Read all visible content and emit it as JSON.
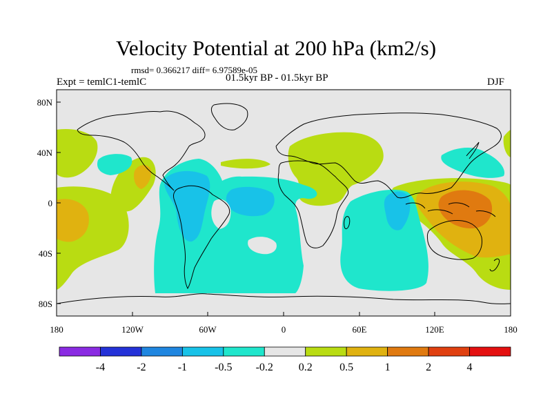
{
  "title": "Velocity Potential at 200 hPa (km2/s)",
  "stats_text": "rmsd= 0.366217 diff= 6.97589e-05",
  "experiment_label": "Expt = temlC1-temlC",
  "period_label": "01.5kyr BP - 01.5kyr BP",
  "season_label": "DJF",
  "axes": {
    "x_ticks": [
      "180",
      "120W",
      "60W",
      "0",
      "60E",
      "120E",
      "180"
    ],
    "y_ticks": [
      "80N",
      "40N",
      "0",
      "40S",
      "80S"
    ]
  },
  "colorbar": {
    "levels": [
      "-4",
      "-2",
      "-1",
      "-0.5",
      "-0.2",
      "0.2",
      "0.5",
      "1",
      "2",
      "4"
    ],
    "colors": [
      "#8a2be2",
      "#2432d8",
      "#1f86e0",
      "#18c2e8",
      "#1fe6cc",
      "#e6e6e6",
      "#b9dc12",
      "#e0b210",
      "#e07a10",
      "#e04010",
      "#e41010"
    ]
  },
  "colors": {
    "ocean_background": "#e6e6e6",
    "coastline": "#000000"
  }
}
